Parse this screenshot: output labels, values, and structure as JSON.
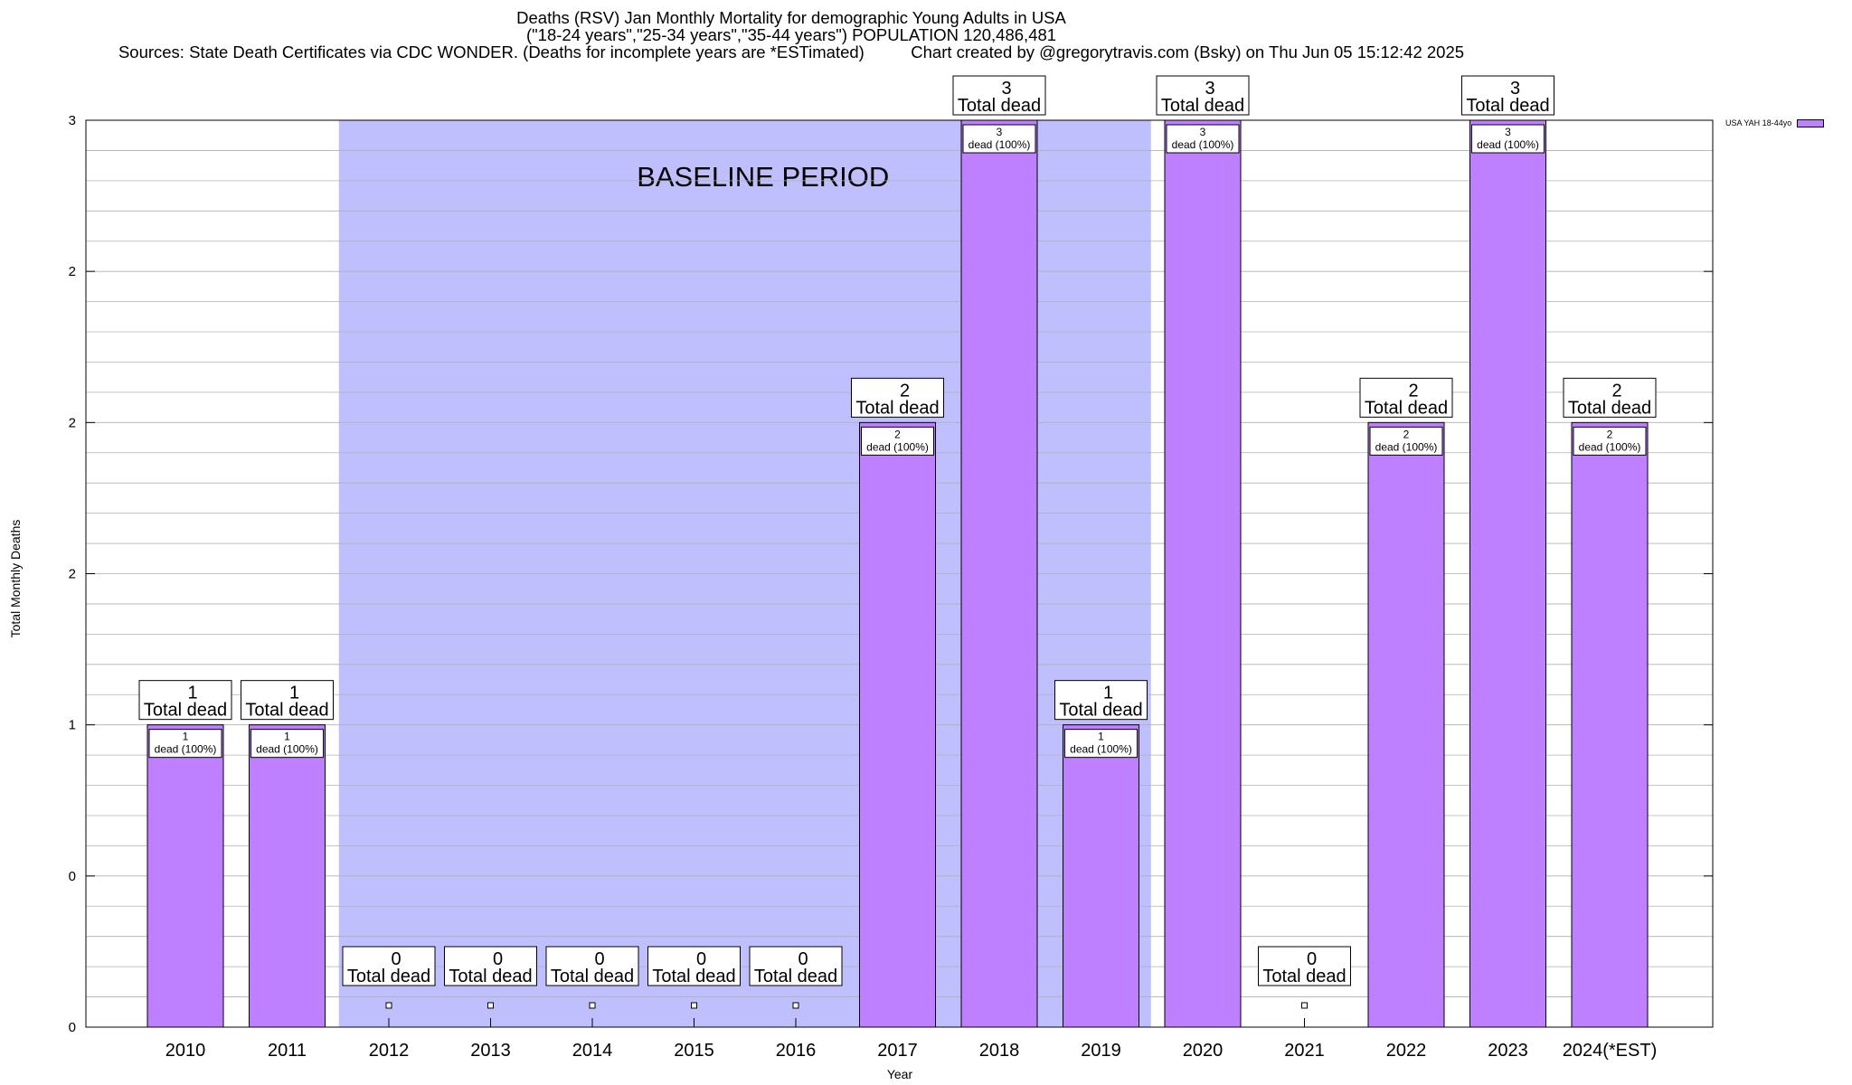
{
  "chart_data": {
    "type": "bar",
    "title": "Deaths (RSV) Jan Monthly Mortality for demographic Young Adults in USA",
    "subtitle": "(\"18-24 years\",\"25-34 years\",\"35-44 years\") POPULATION 120,486,481",
    "sources": "Sources: State Death Certificates via CDC WONDER. (Deaths for incomplete years are *ESTimated)",
    "credit": "Chart created by @gregorytravis.com (Bsky) on Thu Jun 05 15:12:42 2025",
    "xlabel": "Year",
    "ylabel": "Total Monthly Deaths",
    "ylim": [
      0,
      3
    ],
    "ytick_labels": [
      "0",
      "0",
      "1",
      "2",
      "2",
      "2",
      "3"
    ],
    "grid": true,
    "legend_position": "top-right",
    "annotation": "BASELINE PERIOD",
    "baseline_period": [
      "2012",
      "2019"
    ],
    "categories": [
      "2010",
      "2011",
      "2012",
      "2013",
      "2014",
      "2015",
      "2016",
      "2017",
      "2018",
      "2019",
      "2020",
      "2021",
      "2022",
      "2023",
      "2024(*EST)"
    ],
    "series": [
      {
        "name": "USA YAH 18-44yo",
        "values": [
          1,
          1,
          0,
          0,
          0,
          0,
          0,
          2,
          3,
          1,
          3,
          0,
          2,
          3,
          2
        ]
      }
    ],
    "total_label_suffix": "Total dead",
    "bar_label_suffix": "dead (100%)",
    "colors": {
      "bar": "#bf80ff",
      "baseline_shade": "#bfbffe",
      "grid": "#b0b0b0"
    }
  }
}
